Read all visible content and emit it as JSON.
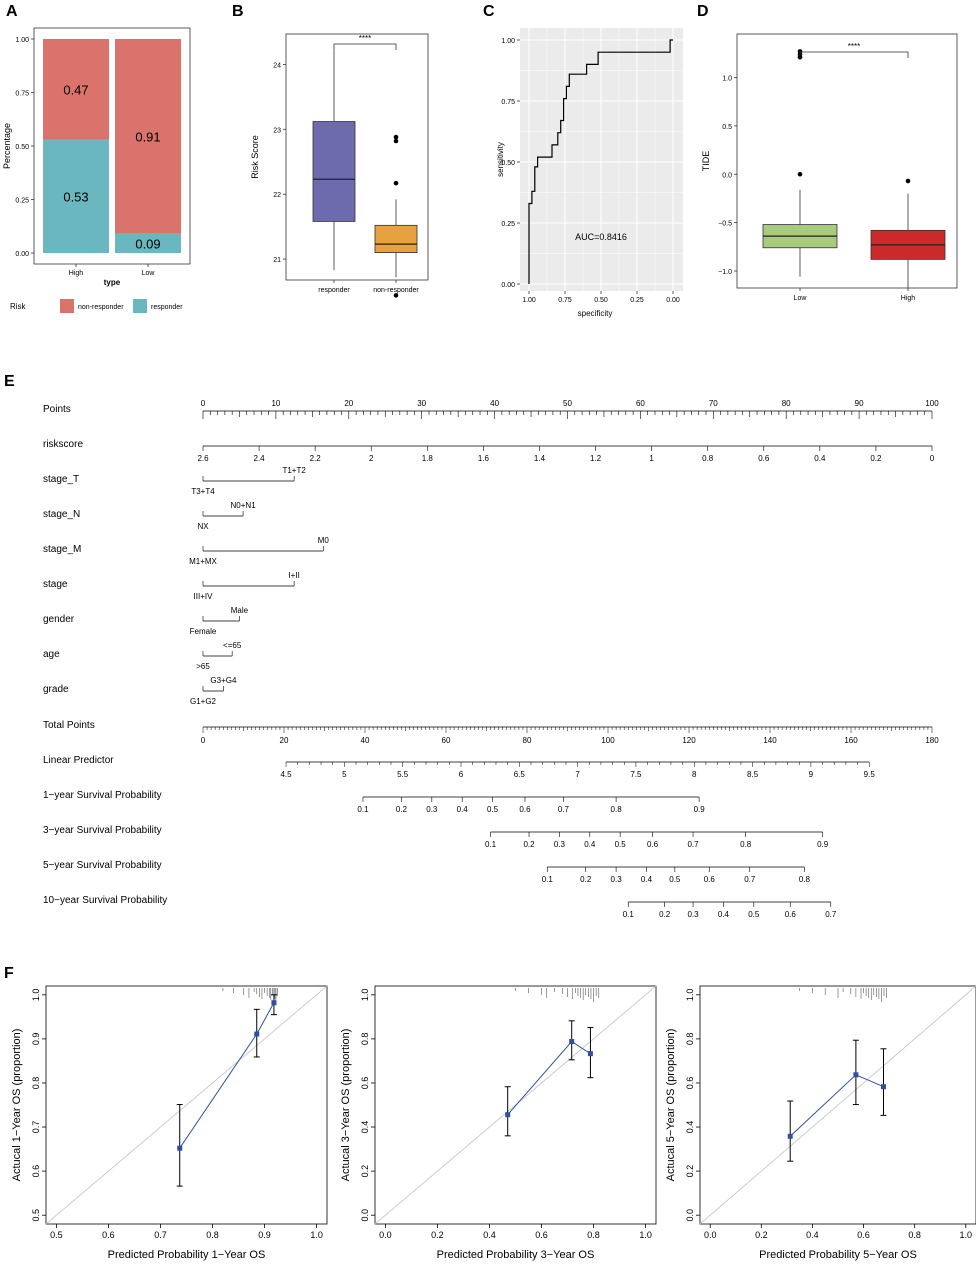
{
  "colors": {
    "nonresponder": "#D9736C",
    "responder": "#6BB7BF",
    "box_responder": "#6D6AAE",
    "box_nonresponder": "#E6A23C",
    "box_low": "#A8CC7E",
    "box_high": "#CC2A2A",
    "calib_line": "#2F4FA0",
    "panel_bg": "#EBEBEB",
    "ideal_line": "#C8C8C8"
  },
  "panel_labels": {
    "a": "A",
    "b": "B",
    "c": "C",
    "d": "D",
    "e": "E",
    "f": "F"
  },
  "chart_data": [
    {
      "panel": "A",
      "type": "bar",
      "stacked": true,
      "title": "",
      "xlabel": "type",
      "ylabel": "Percentage",
      "ylim": [
        0,
        1
      ],
      "yticks": [
        "0.00",
        "0.25",
        "0.50",
        "0.75",
        "1.00"
      ],
      "categories": [
        "High",
        "Low"
      ],
      "series": [
        {
          "name": "non-responder",
          "values": [
            0.47,
            0.91
          ],
          "labels": [
            "0.47",
            "0.91"
          ]
        },
        {
          "name": "responder",
          "values": [
            0.53,
            0.09
          ],
          "labels": [
            "0.53",
            "0.09"
          ]
        }
      ],
      "legend_title": "Risk",
      "legend_position": "bottom"
    },
    {
      "panel": "B",
      "type": "box",
      "xlabel": "",
      "ylabel": "Risk Score",
      "ylim": [
        20.4,
        24.5
      ],
      "yticks": [
        21,
        22,
        23,
        24
      ],
      "categories": [
        "responder",
        "non-responder"
      ],
      "boxes": [
        {
          "q1": 21.58,
          "median": 22.23,
          "q3": 23.12,
          "whisker_low": 20.83,
          "whisker_high": 24.22,
          "outliers": []
        },
        {
          "q1": 21.1,
          "median": 21.23,
          "q3": 21.52,
          "whisker_low": 20.72,
          "whisker_high": 21.92,
          "outliers": [
            22.88,
            22.82,
            22.17,
            20.44
          ]
        }
      ],
      "significance": "****"
    },
    {
      "panel": "C",
      "type": "line",
      "subtype": "roc",
      "xlabel": "specificity",
      "ylabel": "sensitivity",
      "xlim": [
        1.0,
        0.0
      ],
      "ylim": [
        0,
        1
      ],
      "xticks": [
        "1.00",
        "0.75",
        "0.50",
        "0.25",
        "0.00"
      ],
      "yticks": [
        "0.00",
        "0.25",
        "0.50",
        "0.75",
        "1.00"
      ],
      "annotation": "AUC=0.8416",
      "x": [
        1.0,
        1.0,
        0.98,
        0.98,
        0.96,
        0.96,
        0.94,
        0.94,
        0.9,
        0.9,
        0.84,
        0.84,
        0.8,
        0.8,
        0.78,
        0.78,
        0.76,
        0.76,
        0.74,
        0.74,
        0.72,
        0.72,
        0.68,
        0.68,
        0.6,
        0.6,
        0.52,
        0.52,
        0.02,
        0.02,
        0.0
      ],
      "y": [
        0.0,
        0.33,
        0.33,
        0.38,
        0.38,
        0.48,
        0.48,
        0.52,
        0.52,
        0.52,
        0.52,
        0.57,
        0.57,
        0.62,
        0.62,
        0.67,
        0.67,
        0.76,
        0.76,
        0.81,
        0.81,
        0.86,
        0.86,
        0.86,
        0.86,
        0.9,
        0.9,
        0.95,
        0.95,
        1.0,
        1.0
      ]
    },
    {
      "panel": "D",
      "type": "box",
      "xlabel": "",
      "ylabel": "TIDE",
      "ylim": [
        -1.3,
        1.45
      ],
      "yticks": [
        -1.0,
        -0.5,
        0.0,
        0.5,
        1.0
      ],
      "ytick_labels": [
        "−1.0",
        "−0.5",
        "0.0",
        "0.5",
        "1.0"
      ],
      "categories": [
        "Low",
        "High"
      ],
      "boxes": [
        {
          "q1": -0.76,
          "median": -0.64,
          "q3": -0.52,
          "whisker_low": -1.06,
          "whisker_high": -0.16,
          "outliers": [
            1.27,
            1.24,
            1.21,
            0.0
          ]
        },
        {
          "q1": -0.88,
          "median": -0.73,
          "q3": -0.58,
          "whisker_low": -1.18,
          "whisker_high": -0.2,
          "outliers": [
            -0.07
          ]
        }
      ],
      "significance": "****"
    },
    {
      "panel": "E",
      "type": "nomogram",
      "rows": [
        {
          "label": "Points",
          "kind": "scale",
          "range": [
            0,
            100
          ],
          "ticks": [
            0,
            10,
            20,
            30,
            40,
            50,
            60,
            70,
            80,
            90,
            100
          ],
          "minor": 1,
          "label_pos": "above"
        },
        {
          "label": "riskscore",
          "kind": "scale",
          "range": [
            0,
            100
          ],
          "ticks": [
            0,
            10,
            20,
            30,
            40,
            50,
            60,
            70,
            80,
            90,
            100
          ],
          "tick_labels": [
            "2.6",
            "2.4",
            "2.2",
            "2",
            "1.8",
            "1.6",
            "1.4",
            "1.2",
            "1",
            "0.8",
            "0.6",
            "0.4",
            "0.2",
            "0"
          ],
          "label_pos": "below"
        },
        {
          "label": "stage_T",
          "kind": "factor",
          "lo": "T3+T4",
          "hi": "T1+T2",
          "points": 12.5
        },
        {
          "label": "stage_N",
          "kind": "factor",
          "lo": "NX",
          "hi": "N0+N1",
          "points": 5.5
        },
        {
          "label": "stage_M",
          "kind": "factor",
          "lo": "M1+MX",
          "hi": "M0",
          "points": 16.5
        },
        {
          "label": "stage",
          "kind": "factor",
          "lo": "III+IV",
          "hi": "I+II",
          "points": 12.5
        },
        {
          "label": "gender",
          "kind": "factor",
          "lo": "Female",
          "hi": "Male",
          "points": 5.0
        },
        {
          "label": "age",
          "kind": "factor",
          "lo": ">65",
          "hi": "<=65",
          "points": 4.0
        },
        {
          "label": "grade",
          "kind": "factor",
          "lo": "G1+G2",
          "hi": "G3+G4",
          "points": 2.8
        },
        {
          "label": "Total Points",
          "kind": "scale",
          "range": [
            0,
            180
          ],
          "ticks": [
            0,
            20,
            40,
            60,
            80,
            100,
            120,
            140,
            160,
            180
          ],
          "label_pos": "below"
        },
        {
          "label": "Linear Predictor",
          "kind": "scale",
          "range": [
            4.5,
            9.5
          ],
          "ticks": [
            4.5,
            5,
            5.5,
            6,
            6.5,
            7,
            7.5,
            8,
            8.5,
            9,
            9.5
          ],
          "total_points_range": [
            20.5,
            164.5
          ],
          "label_pos": "below"
        },
        {
          "label": "1−year Survival Probability",
          "kind": "prob",
          "ticks": [
            "0.1",
            "0.2",
            "0.3",
            "0.4",
            "0.5",
            "0.6",
            "0.7",
            "0.8",
            "0.9"
          ],
          "total_points": [
            39.5,
            49,
            56.5,
            64,
            71.5,
            79.5,
            89,
            102,
            122.5
          ]
        },
        {
          "label": "3−year Survival Probability",
          "kind": "prob",
          "ticks": [
            "0.1",
            "0.2",
            "0.3",
            "0.4",
            "0.5",
            "0.6",
            "0.7",
            "0.8",
            "0.9"
          ],
          "total_points": [
            71,
            80.5,
            88,
            95.5,
            103,
            111,
            121,
            134,
            153
          ]
        },
        {
          "label": "5−year Survival Probability",
          "kind": "prob",
          "ticks": [
            "0.1",
            "0.2",
            "0.3",
            "0.4",
            "0.5",
            "0.6",
            "0.7",
            "0.8"
          ],
          "total_points": [
            85,
            94.5,
            102,
            109.5,
            116.5,
            125,
            135,
            148.5
          ]
        },
        {
          "label": "10−year Survival Probability",
          "kind": "prob",
          "ticks": [
            "0.1",
            "0.2",
            "0.3",
            "0.4",
            "0.5",
            "0.6",
            "0.7"
          ],
          "total_points": [
            105,
            114,
            121,
            128.5,
            136,
            145,
            155
          ]
        }
      ]
    },
    {
      "panel": "F",
      "type": "scatter",
      "subtype": "calibration",
      "plots": [
        {
          "xlabel": "Predicted Probability 1−Year OS",
          "ylabel": "Actucal 1−Year OS (proportion)",
          "xlim": [
            0.48,
            1.02
          ],
          "ylim": [
            0.48,
            1.02
          ],
          "xticks": [
            0.5,
            0.6,
            0.7,
            0.8,
            0.9,
            1.0
          ],
          "yticks": [
            0.5,
            0.6,
            0.7,
            0.8,
            0.9,
            1.0
          ],
          "x": [
            0.737,
            0.885,
            0.918
          ],
          "y": [
            0.652,
            0.911,
            0.982
          ],
          "ci_low": [
            0.566,
            0.859,
            0.955
          ],
          "ci_high": [
            0.751,
            0.967,
            1.0
          ],
          "rug": [
            0.82,
            0.84,
            0.86,
            0.87,
            0.88,
            0.885,
            0.89,
            0.895,
            0.9,
            0.905,
            0.91,
            0.912,
            0.915,
            0.918,
            0.92,
            0.922,
            0.925
          ]
        },
        {
          "xlabel": "Predicted Probability 3−Year OS",
          "ylabel": "Actucal 3−Year OS (proportion)",
          "xlim": [
            -0.04,
            1.04
          ],
          "ylim": [
            -0.04,
            1.04
          ],
          "xticks": [
            0.0,
            0.2,
            0.4,
            0.6,
            0.8,
            1.0
          ],
          "yticks": [
            0.0,
            0.2,
            0.4,
            0.6,
            0.8,
            1.0
          ],
          "x": [
            0.47,
            0.716,
            0.788
          ],
          "y": [
            0.456,
            0.788,
            0.733
          ],
          "ci_low": [
            0.36,
            0.705,
            0.624
          ],
          "ci_high": [
            0.583,
            0.882,
            0.852
          ],
          "rug": [
            0.5,
            0.55,
            0.6,
            0.62,
            0.65,
            0.68,
            0.7,
            0.72,
            0.73,
            0.74,
            0.75,
            0.76,
            0.77,
            0.78,
            0.79,
            0.8,
            0.81,
            0.82
          ]
        },
        {
          "xlabel": "Predicted Probability 5−Year OS",
          "ylabel": "Actucal 5−Year OS (proportion)",
          "xlim": [
            -0.04,
            1.04
          ],
          "ylim": [
            -0.04,
            1.04
          ],
          "xticks": [
            0.0,
            0.2,
            0.4,
            0.6,
            0.8,
            1.0
          ],
          "yticks": [
            0.0,
            0.2,
            0.4,
            0.6,
            0.8,
            1.0
          ],
          "x": [
            0.313,
            0.57,
            0.678
          ],
          "y": [
            0.358,
            0.637,
            0.583
          ],
          "ci_low": [
            0.245,
            0.502,
            0.453
          ],
          "ci_high": [
            0.518,
            0.794,
            0.755
          ],
          "rug": [
            0.35,
            0.4,
            0.45,
            0.5,
            0.52,
            0.55,
            0.57,
            0.59,
            0.6,
            0.61,
            0.62,
            0.63,
            0.64,
            0.65,
            0.66,
            0.67,
            0.68,
            0.69
          ]
        }
      ]
    }
  ]
}
